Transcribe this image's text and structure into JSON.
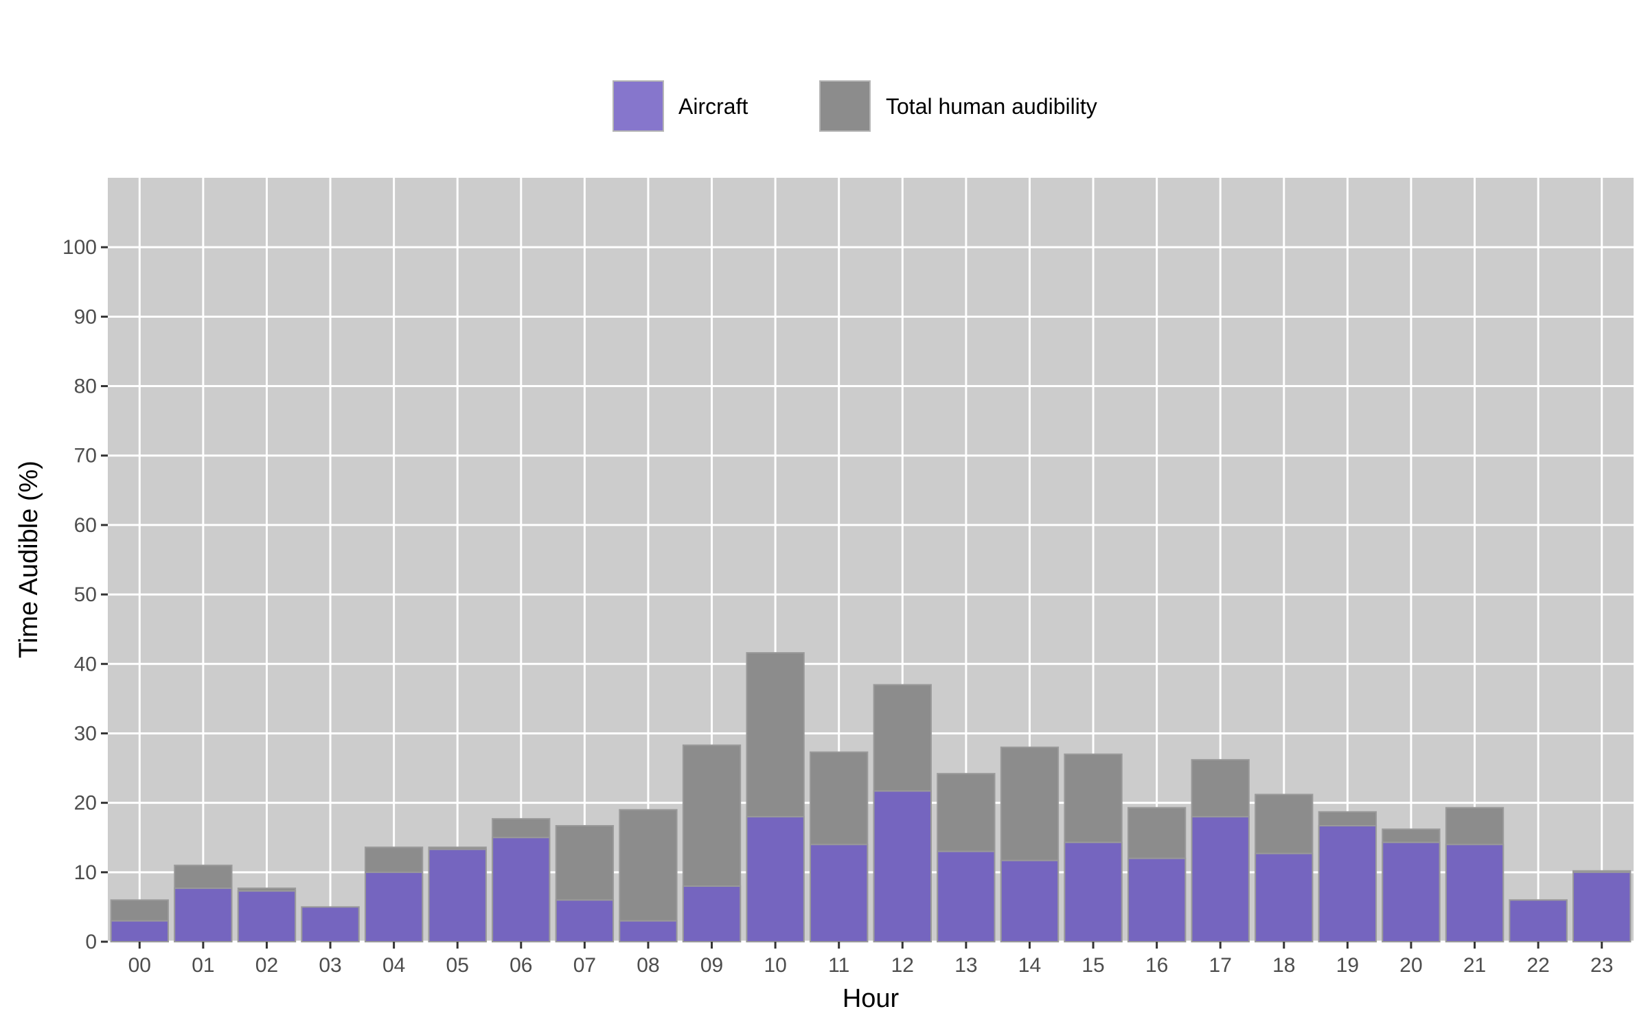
{
  "chart_data": {
    "type": "bar",
    "title": "",
    "xlabel": "Hour",
    "ylabel": "Time Audible (%)",
    "categories": [
      "00",
      "01",
      "02",
      "03",
      "04",
      "05",
      "06",
      "07",
      "08",
      "09",
      "10",
      "11",
      "12",
      "13",
      "14",
      "15",
      "16",
      "17",
      "18",
      "19",
      "20",
      "21",
      "22",
      "23"
    ],
    "series": [
      {
        "name": "Total human audibility",
        "color": "#8c8c8c",
        "values": [
          6,
          11,
          7.7,
          5,
          13.6,
          13.6,
          17.7,
          16.7,
          19,
          28.3,
          41.6,
          27.3,
          37,
          24.2,
          28,
          27,
          19.3,
          26.2,
          21.2,
          18.7,
          16.2,
          19.3,
          6,
          10.2
        ]
      },
      {
        "name": "Aircraft",
        "color": "#7565bf",
        "values": [
          3,
          7.7,
          7.3,
          5,
          10,
          13.3,
          15,
          6,
          3,
          8,
          18,
          14,
          21.7,
          13,
          11.7,
          14.3,
          12,
          18,
          12.7,
          16.7,
          14.3,
          14,
          6,
          10
        ]
      }
    ],
    "ylim": [
      0,
      110
    ],
    "yticks": [
      0,
      10,
      20,
      30,
      40,
      50,
      60,
      70,
      80,
      90,
      100
    ],
    "grid": true,
    "legend_position": "top"
  },
  "legend": {
    "aircraft_label": "Aircraft",
    "total_label": "Total human audibility",
    "aircraft_color": "#8676cc",
    "total_color": "#8c8c8c"
  },
  "colors": {
    "panel_background": "#cccccc",
    "gridline": "#ffffff",
    "bar_outline": "#9a9a9a"
  }
}
